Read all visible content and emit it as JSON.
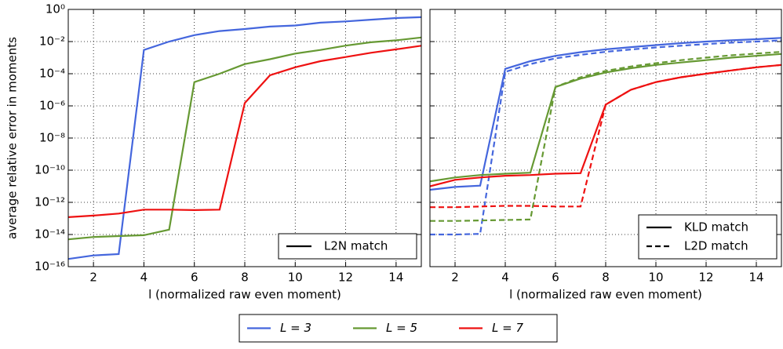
{
  "chart_data": [
    {
      "type": "line",
      "ylabel": "average relative error in moments",
      "xlabel": "l (normalized raw even moment)",
      "x": [
        1,
        2,
        3,
        4,
        5,
        6,
        7,
        8,
        9,
        10,
        11,
        12,
        13,
        14,
        15
      ],
      "xlim": [
        1,
        15
      ],
      "xticks": [
        2,
        4,
        6,
        8,
        10,
        12,
        14
      ],
      "ylim": [
        1e-16,
        1
      ],
      "ylog": true,
      "grid": true,
      "legend_loc": "lower right",
      "yticks": [
        {
          "value": 1e-16,
          "label": "10⁻¹⁶"
        },
        {
          "value": 1e-14,
          "label": "10⁻¹⁴"
        },
        {
          "value": 1e-12,
          "label": "10⁻¹²"
        },
        {
          "value": 1e-10,
          "label": "10⁻¹⁰"
        },
        {
          "value": 1e-08,
          "label": "10⁻⁸"
        },
        {
          "value": 1e-06,
          "label": "10⁻⁶"
        },
        {
          "value": 0.0001,
          "label": "10⁻⁴"
        },
        {
          "value": 0.01,
          "label": "10⁻²"
        },
        {
          "value": 1,
          "label": "10⁰"
        }
      ],
      "style_legend": [
        {
          "label": "L2N match",
          "dash": "solid"
        }
      ],
      "series": [
        {
          "name": "L = 3",
          "color": "#4466dd",
          "dash": "solid",
          "values": [
            3e-16,
            5e-16,
            6e-16,
            0.003,
            0.01,
            0.025,
            0.045,
            0.06,
            0.085,
            0.1,
            0.15,
            0.18,
            0.23,
            0.29,
            0.33
          ]
        },
        {
          "name": "L = 5",
          "color": "#669933",
          "dash": "solid",
          "values": [
            5e-15,
            7e-15,
            8e-15,
            9e-15,
            2e-14,
            3e-05,
            0.0001,
            0.0004,
            0.0008,
            0.0018,
            0.003,
            0.0056,
            0.009,
            0.012,
            0.018
          ]
        },
        {
          "name": "L = 7",
          "color": "#ee1111",
          "dash": "solid",
          "values": [
            1.2e-13,
            1.5e-13,
            2e-13,
            3.5e-13,
            3.5e-13,
            3.3e-13,
            3.5e-13,
            1.5e-06,
            8e-05,
            0.00025,
            0.0006,
            0.0011,
            0.002,
            0.0033,
            0.0055
          ]
        }
      ]
    },
    {
      "type": "line",
      "xlabel": "l (normalized raw even moment)",
      "x": [
        1,
        2,
        3,
        4,
        5,
        6,
        7,
        8,
        9,
        10,
        11,
        12,
        13,
        14,
        15
      ],
      "xlim": [
        1,
        15
      ],
      "xticks": [
        2,
        4,
        6,
        8,
        10,
        12,
        14
      ],
      "ylim": [
        1e-16,
        1
      ],
      "ylog": true,
      "grid": true,
      "legend_loc": "lower right",
      "ytick_labels": false,
      "yticks": [
        1e-16,
        1e-14,
        1e-12,
        1e-10,
        1e-08,
        1e-06,
        0.0001,
        0.01,
        1
      ],
      "style_legend": [
        {
          "label": "KLD match",
          "dash": "solid"
        },
        {
          "label": "L2D match",
          "dash": "dashed"
        }
      ],
      "series": [
        {
          "name": "L = 3",
          "color": "#4466dd",
          "dash": "solid",
          "values": [
            6e-12,
            9e-12,
            1.1e-11,
            0.0002,
            0.0006,
            0.0013,
            0.0022,
            0.0033,
            0.0045,
            0.006,
            0.008,
            0.01,
            0.012,
            0.014,
            0.017
          ]
        },
        {
          "name": "L = 3",
          "color": "#4466dd",
          "dash": "dashed",
          "values": [
            1e-14,
            1e-14,
            1.1e-14,
            0.00013,
            0.0004,
            0.0009,
            0.0015,
            0.0023,
            0.0032,
            0.0043,
            0.0055,
            0.007,
            0.0085,
            0.01,
            0.012
          ]
        },
        {
          "name": "L = 5",
          "color": "#669933",
          "dash": "solid",
          "values": [
            2e-11,
            3.5e-11,
            5e-11,
            6e-11,
            7e-11,
            1.5e-05,
            5e-05,
            0.00012,
            0.00022,
            0.00035,
            0.0005,
            0.0007,
            0.001,
            0.0013,
            0.0017
          ]
        },
        {
          "name": "L = 5",
          "color": "#669933",
          "dash": "dashed",
          "values": [
            7e-14,
            7e-14,
            7.5e-14,
            8e-14,
            8.5e-14,
            1.5e-05,
            6e-05,
            0.00015,
            0.00028,
            0.00045,
            0.0007,
            0.001,
            0.0014,
            0.0018,
            0.0023
          ]
        },
        {
          "name": "L = 7",
          "color": "#ee1111",
          "dash": "solid",
          "values": [
            1e-11,
            2.5e-11,
            3.5e-11,
            4.5e-11,
            5e-11,
            6e-11,
            6.5e-11,
            1.2e-06,
            1e-05,
            3e-05,
            6e-05,
            0.0001,
            0.00016,
            0.00025,
            0.00035
          ]
        },
        {
          "name": "L = 7",
          "color": "#ee1111",
          "dash": "dashed",
          "values": [
            5e-13,
            5e-13,
            5.5e-13,
            6e-13,
            6e-13,
            5.5e-13,
            5.5e-13,
            1.2e-06,
            1e-05,
            3e-05,
            6e-05,
            0.0001,
            0.00016,
            0.00025,
            0.00035
          ]
        }
      ]
    }
  ]
}
